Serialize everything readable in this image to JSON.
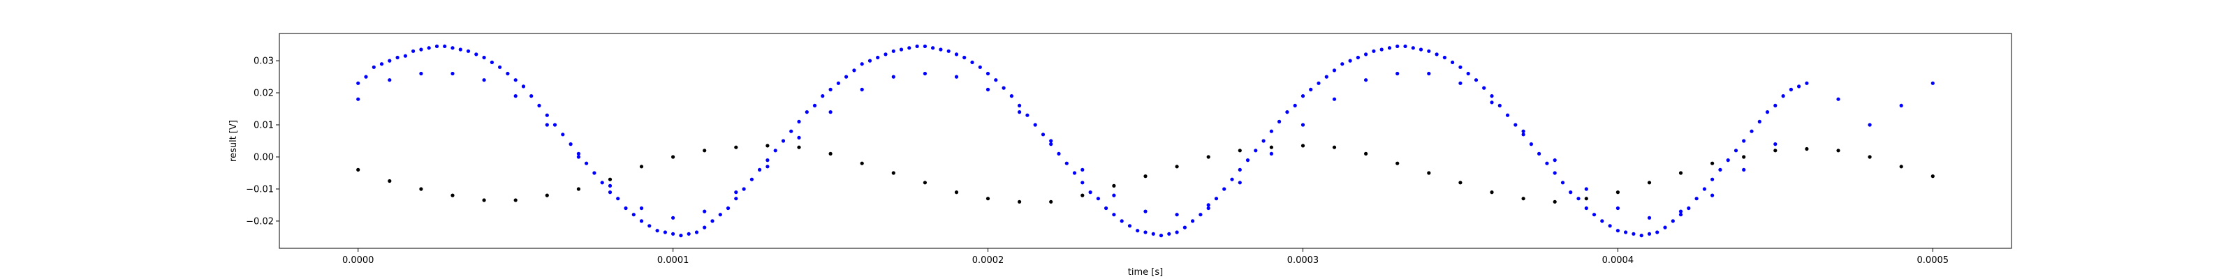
{
  "chart_data": {
    "type": "scatter",
    "title": "",
    "xlabel": "time [s]",
    "ylabel": "result [V]",
    "xlim": [
      -2.5e-05,
      0.000525
    ],
    "ylim": [
      -0.0285,
      0.0385
    ],
    "xticks": [
      0.0,
      0.0001,
      0.0002,
      0.0003,
      0.0004,
      0.0005
    ],
    "xtick_labels": [
      "0.0000",
      "0.0001",
      "0.0002",
      "0.0003",
      "0.0004",
      "0.0005"
    ],
    "yticks": [
      -0.02,
      -0.01,
      0.0,
      0.01,
      0.02,
      0.03
    ],
    "ytick_labels": [
      "−0.02",
      "−0.01",
      "0.00",
      "0.01",
      "0.02",
      "0.03"
    ],
    "grid": false,
    "legend": "none",
    "series": [
      {
        "color": "#0000ff",
        "marker": "dot",
        "points": [
          [
            0.0,
            0.023
          ],
          [
            2.5e-06,
            0.025
          ],
          [
            5e-06,
            0.028
          ],
          [
            7.5e-06,
            0.029
          ],
          [
            1e-05,
            0.03
          ],
          [
            1.25e-05,
            0.031
          ],
          [
            1.5e-05,
            0.0315
          ],
          [
            1.75e-05,
            0.033
          ],
          [
            2e-05,
            0.0335
          ],
          [
            2.25e-05,
            0.034
          ],
          [
            2.5e-05,
            0.0345
          ],
          [
            2.75e-05,
            0.0345
          ],
          [
            3e-05,
            0.034
          ],
          [
            3.25e-05,
            0.0335
          ],
          [
            3.5e-05,
            0.033
          ],
          [
            3.75e-05,
            0.032
          ],
          [
            4e-05,
            0.031
          ],
          [
            4.25e-05,
            0.0295
          ],
          [
            4.5e-05,
            0.028
          ],
          [
            4.75e-05,
            0.026
          ],
          [
            5e-05,
            0.024
          ],
          [
            5.25e-05,
            0.022
          ],
          [
            5.5e-05,
            0.019
          ],
          [
            5.75e-05,
            0.016
          ],
          [
            6e-05,
            0.013
          ],
          [
            6.25e-05,
            0.01
          ],
          [
            6.5e-05,
            0.007
          ],
          [
            6.75e-05,
            0.004
          ],
          [
            7e-05,
            0.001
          ],
          [
            7.25e-05,
            -0.002
          ],
          [
            7.5e-05,
            -0.005
          ],
          [
            7.75e-05,
            -0.008
          ],
          [
            8e-05,
            -0.011
          ],
          [
            8.25e-05,
            -0.013
          ],
          [
            8.5e-05,
            -0.016
          ],
          [
            8.75e-05,
            -0.018
          ],
          [
            9e-05,
            -0.02
          ],
          [
            9.25e-05,
            -0.0215
          ],
          [
            9.5e-05,
            -0.023
          ],
          [
            9.75e-05,
            -0.0235
          ],
          [
            0.0001,
            -0.024
          ],
          [
            0.0001025,
            -0.0245
          ],
          [
            0.000105,
            -0.024
          ],
          [
            0.0001075,
            -0.0235
          ],
          [
            0.00011,
            -0.022
          ],
          [
            0.0001125,
            -0.02
          ],
          [
            0.000115,
            -0.018
          ],
          [
            0.0001175,
            -0.016
          ],
          [
            0.00012,
            -0.013
          ],
          [
            0.0001225,
            -0.01
          ],
          [
            0.000125,
            -0.007
          ],
          [
            0.0001275,
            -0.004
          ],
          [
            0.00013,
            -0.001
          ],
          [
            0.0001325,
            0.002
          ],
          [
            0.000135,
            0.005
          ],
          [
            0.0001375,
            0.008
          ],
          [
            0.00014,
            0.011
          ],
          [
            0.0001425,
            0.014
          ],
          [
            0.000145,
            0.016
          ],
          [
            0.0001475,
            0.019
          ],
          [
            0.00015,
            0.021
          ],
          [
            0.0001525,
            0.023
          ],
          [
            0.000155,
            0.025
          ],
          [
            0.0001575,
            0.027
          ],
          [
            0.00016,
            0.029
          ],
          [
            0.0001625,
            0.03
          ],
          [
            0.000165,
            0.031
          ],
          [
            0.0001675,
            0.032
          ],
          [
            0.00017,
            0.033
          ],
          [
            0.0001725,
            0.0335
          ],
          [
            0.000175,
            0.034
          ],
          [
            0.0001775,
            0.0345
          ],
          [
            0.00018,
            0.0345
          ],
          [
            0.0001825,
            0.034
          ],
          [
            0.000185,
            0.0335
          ],
          [
            0.0001875,
            0.033
          ],
          [
            0.00019,
            0.032
          ],
          [
            0.0001925,
            0.031
          ],
          [
            0.000195,
            0.0295
          ],
          [
            0.0001975,
            0.028
          ],
          [
            0.0002,
            0.026
          ],
          [
            0.0002025,
            0.024
          ],
          [
            0.000205,
            0.0215
          ],
          [
            0.0002075,
            0.019
          ],
          [
            0.00021,
            0.016
          ],
          [
            0.0002125,
            0.013
          ],
          [
            0.000215,
            0.01
          ],
          [
            0.0002175,
            0.007
          ],
          [
            0.00022,
            0.004
          ],
          [
            0.0002225,
            0.001
          ],
          [
            0.000225,
            -0.002
          ],
          [
            0.0002275,
            -0.005
          ],
          [
            0.00023,
            -0.008
          ],
          [
            0.0002325,
            -0.011
          ],
          [
            0.000235,
            -0.013
          ],
          [
            0.0002375,
            -0.016
          ],
          [
            0.00024,
            -0.018
          ],
          [
            0.0002425,
            -0.02
          ],
          [
            0.000245,
            -0.0215
          ],
          [
            0.0002475,
            -0.023
          ],
          [
            0.00025,
            -0.0235
          ],
          [
            0.0002525,
            -0.024
          ],
          [
            0.000255,
            -0.0245
          ],
          [
            0.0002575,
            -0.024
          ],
          [
            0.00026,
            -0.0235
          ],
          [
            0.0002625,
            -0.022
          ],
          [
            0.000265,
            -0.02
          ],
          [
            0.0002675,
            -0.018
          ],
          [
            0.00027,
            -0.016
          ],
          [
            0.0002725,
            -0.013
          ],
          [
            0.000275,
            -0.01
          ],
          [
            0.0002775,
            -0.007
          ],
          [
            0.00028,
            -0.004
          ],
          [
            0.0002825,
            -0.001
          ],
          [
            0.000285,
            0.002
          ],
          [
            0.0002875,
            0.005
          ],
          [
            0.00029,
            0.008
          ],
          [
            0.0002925,
            0.011
          ],
          [
            0.000295,
            0.014
          ],
          [
            0.0002975,
            0.016
          ],
          [
            0.0003,
            0.019
          ],
          [
            0.0003025,
            0.021
          ],
          [
            0.000305,
            0.023
          ],
          [
            0.0003075,
            0.025
          ],
          [
            0.00031,
            0.027
          ],
          [
            0.0003125,
            0.029
          ],
          [
            0.000315,
            0.03
          ],
          [
            0.0003175,
            0.031
          ],
          [
            0.00032,
            0.032
          ],
          [
            0.0003225,
            0.033
          ],
          [
            0.000325,
            0.0335
          ],
          [
            0.0003275,
            0.034
          ],
          [
            0.00033,
            0.0345
          ],
          [
            0.0003325,
            0.0345
          ],
          [
            0.000335,
            0.034
          ],
          [
            0.0003375,
            0.0335
          ],
          [
            0.00034,
            0.033
          ],
          [
            0.0003425,
            0.032
          ],
          [
            0.000345,
            0.031
          ],
          [
            0.0003475,
            0.0295
          ],
          [
            0.00035,
            0.028
          ],
          [
            0.0003525,
            0.026
          ],
          [
            0.000355,
            0.024
          ],
          [
            0.0003575,
            0.0215
          ],
          [
            0.00036,
            0.019
          ],
          [
            0.0003625,
            0.016
          ],
          [
            0.000365,
            0.013
          ],
          [
            0.0003675,
            0.01
          ],
          [
            0.00037,
            0.007
          ],
          [
            0.0003725,
            0.004
          ],
          [
            0.000375,
            0.001
          ],
          [
            0.0003775,
            -0.002
          ],
          [
            0.00038,
            -0.005
          ],
          [
            0.0003825,
            -0.008
          ],
          [
            0.000385,
            -0.011
          ],
          [
            0.0003875,
            -0.013
          ],
          [
            0.00039,
            -0.016
          ],
          [
            0.0003925,
            -0.018
          ],
          [
            0.000395,
            -0.02
          ],
          [
            0.0003975,
            -0.0215
          ],
          [
            0.0004,
            -0.023
          ],
          [
            0.0004025,
            -0.0235
          ],
          [
            0.000405,
            -0.024
          ],
          [
            0.0004075,
            -0.0245
          ],
          [
            0.00041,
            -0.024
          ],
          [
            0.0004125,
            -0.0235
          ],
          [
            0.000415,
            -0.022
          ],
          [
            0.0004175,
            -0.02
          ],
          [
            0.00042,
            -0.018
          ],
          [
            0.0004225,
            -0.016
          ],
          [
            0.000425,
            -0.013
          ],
          [
            0.0004275,
            -0.01
          ],
          [
            0.00043,
            -0.007
          ],
          [
            0.0004325,
            -0.004
          ],
          [
            0.000435,
            -0.001
          ],
          [
            0.0004375,
            0.002
          ],
          [
            0.00044,
            0.005
          ],
          [
            0.0004425,
            0.008
          ],
          [
            0.000445,
            0.011
          ],
          [
            0.0004475,
            0.014
          ],
          [
            0.00045,
            0.016
          ],
          [
            0.0004525,
            0.019
          ],
          [
            0.000455,
            0.021
          ],
          [
            0.0004575,
            0.022
          ],
          [
            0.00046,
            0.023
          ],
          [
            0.00047,
            0.018
          ],
          [
            0.00048,
            0.01
          ],
          [
            0.00049,
            0.016
          ],
          [
            0.0005,
            0.023
          ],
          [
            0.0,
            0.018
          ],
          [
            1e-05,
            0.024
          ],
          [
            2e-05,
            0.026
          ],
          [
            3e-05,
            0.026
          ],
          [
            4e-05,
            0.024
          ],
          [
            5e-05,
            0.019
          ],
          [
            6e-05,
            0.01
          ],
          [
            7e-05,
            0.0
          ],
          [
            8e-05,
            -0.009
          ],
          [
            9e-05,
            -0.016
          ],
          [
            0.0001,
            -0.019
          ],
          [
            0.00011,
            -0.017
          ],
          [
            0.00012,
            -0.011
          ],
          [
            0.00013,
            -0.003
          ],
          [
            0.00014,
            0.006
          ],
          [
            0.00015,
            0.014
          ],
          [
            0.00016,
            0.021
          ],
          [
            0.00017,
            0.025
          ],
          [
            0.00018,
            0.026
          ],
          [
            0.00019,
            0.025
          ],
          [
            0.0002,
            0.021
          ],
          [
            0.00021,
            0.014
          ],
          [
            0.00022,
            0.005
          ],
          [
            0.00023,
            -0.004
          ],
          [
            0.00024,
            -0.012
          ],
          [
            0.00025,
            -0.017
          ],
          [
            0.00026,
            -0.018
          ],
          [
            0.00027,
            -0.015
          ],
          [
            0.00028,
            -0.008
          ],
          [
            0.00029,
            0.001
          ],
          [
            0.0003,
            0.01
          ],
          [
            0.00031,
            0.018
          ],
          [
            0.00032,
            0.024
          ],
          [
            0.00033,
            0.026
          ],
          [
            0.00034,
            0.026
          ],
          [
            0.00035,
            0.023
          ],
          [
            0.00036,
            0.017
          ],
          [
            0.00037,
            0.008
          ],
          [
            0.00038,
            -0.001
          ],
          [
            0.00039,
            -0.01
          ],
          [
            0.0004,
            -0.016
          ],
          [
            0.00041,
            -0.019
          ],
          [
            0.00042,
            -0.017
          ],
          [
            0.00043,
            -0.012
          ],
          [
            0.00044,
            -0.004
          ],
          [
            0.00045,
            0.004
          ]
        ]
      },
      {
        "color": "#000000",
        "marker": "dot",
        "points": [
          [
            0.0,
            -0.004
          ],
          [
            1e-05,
            -0.0075
          ],
          [
            2e-05,
            -0.01
          ],
          [
            3e-05,
            -0.012
          ],
          [
            4e-05,
            -0.0135
          ],
          [
            5e-05,
            -0.0135
          ],
          [
            6e-05,
            -0.012
          ],
          [
            7e-05,
            -0.01
          ],
          [
            8e-05,
            -0.007
          ],
          [
            9e-05,
            -0.003
          ],
          [
            0.0001,
            0.0
          ],
          [
            0.00011,
            0.002
          ],
          [
            0.00012,
            0.003
          ],
          [
            0.00013,
            0.0035
          ],
          [
            0.00014,
            0.003
          ],
          [
            0.00015,
            0.001
          ],
          [
            0.00016,
            -0.002
          ],
          [
            0.00017,
            -0.005
          ],
          [
            0.00018,
            -0.008
          ],
          [
            0.00019,
            -0.011
          ],
          [
            0.0002,
            -0.013
          ],
          [
            0.00021,
            -0.014
          ],
          [
            0.00022,
            -0.014
          ],
          [
            0.00023,
            -0.012
          ],
          [
            0.00024,
            -0.009
          ],
          [
            0.00025,
            -0.006
          ],
          [
            0.00026,
            -0.003
          ],
          [
            0.00027,
            0.0
          ],
          [
            0.00028,
            0.002
          ],
          [
            0.00029,
            0.003
          ],
          [
            0.0003,
            0.0035
          ],
          [
            0.00031,
            0.003
          ],
          [
            0.00032,
            0.001
          ],
          [
            0.00033,
            -0.002
          ],
          [
            0.00034,
            -0.005
          ],
          [
            0.00035,
            -0.008
          ],
          [
            0.00036,
            -0.011
          ],
          [
            0.00037,
            -0.013
          ],
          [
            0.00038,
            -0.014
          ],
          [
            0.00039,
            -0.013
          ],
          [
            0.0004,
            -0.011
          ],
          [
            0.00041,
            -0.008
          ],
          [
            0.00042,
            -0.005
          ],
          [
            0.00043,
            -0.002
          ],
          [
            0.00044,
            0.0
          ],
          [
            0.00045,
            0.002
          ],
          [
            0.00046,
            0.0025
          ],
          [
            0.00047,
            0.002
          ],
          [
            0.00048,
            0.0
          ],
          [
            0.00049,
            -0.003
          ],
          [
            0.0005,
            -0.006
          ]
        ]
      }
    ]
  }
}
